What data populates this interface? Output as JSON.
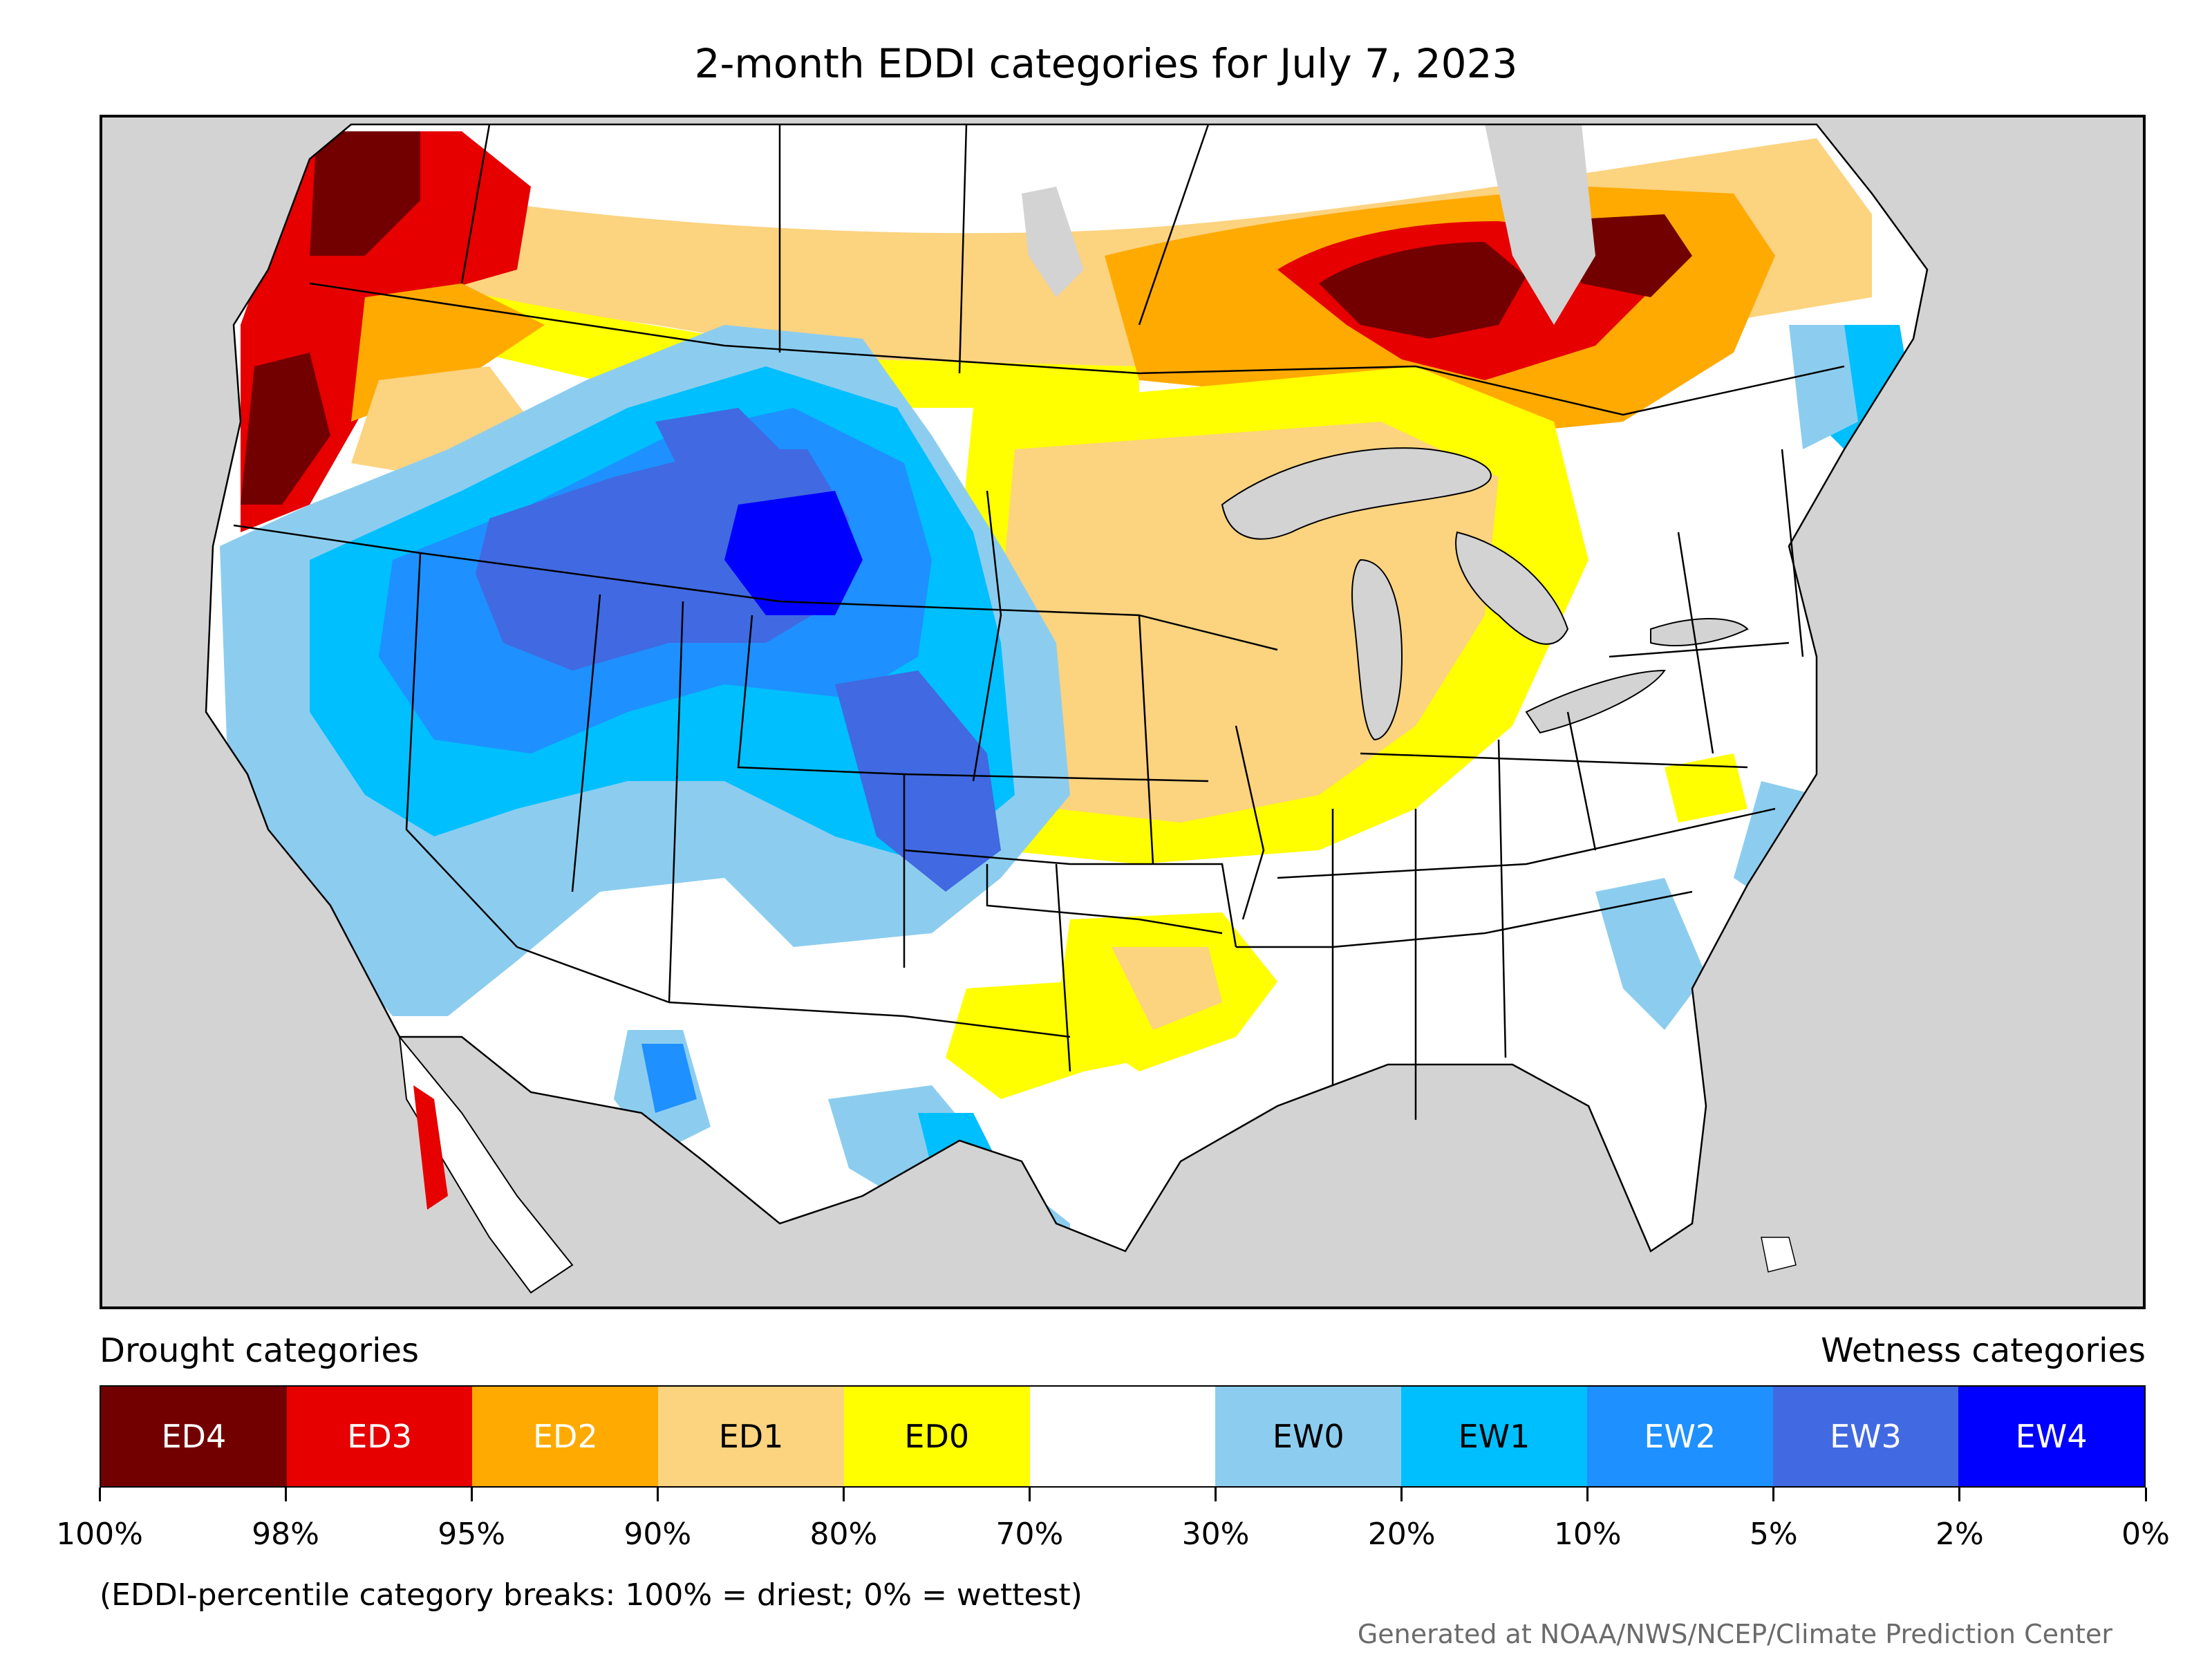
{
  "title": "2-month EDDI categories for July 7, 2023",
  "legend": {
    "left_heading": "Drought categories",
    "right_heading": "Wetness categories",
    "categories": [
      {
        "label": "ED4",
        "color": "#730000",
        "text_color": "#ffffff"
      },
      {
        "label": "ED3",
        "color": "#e60000",
        "text_color": "#ffffff"
      },
      {
        "label": "ED2",
        "color": "#ffaa00",
        "text_color": "#ffffff"
      },
      {
        "label": "ED1",
        "color": "#fcd37f",
        "text_color": "#000000"
      },
      {
        "label": "ED0",
        "color": "#ffff00",
        "text_color": "#000000"
      },
      {
        "label": "",
        "color": "#ffffff",
        "text_color": "#000000"
      },
      {
        "label": "EW0",
        "color": "#8ccdef",
        "text_color": "#000000"
      },
      {
        "label": "EW1",
        "color": "#00bfff",
        "text_color": "#000000"
      },
      {
        "label": "EW2",
        "color": "#1e90ff",
        "text_color": "#ffffff"
      },
      {
        "label": "EW3",
        "color": "#4169e1",
        "text_color": "#ffffff"
      },
      {
        "label": "EW4",
        "color": "#0000ff",
        "text_color": "#ffffff"
      }
    ],
    "ticks": [
      "100%",
      "98%",
      "95%",
      "90%",
      "80%",
      "70%",
      "30%",
      "20%",
      "10%",
      "5%",
      "2%",
      "0%"
    ]
  },
  "note": "(EDDI-percentile category breaks: 100% = driest; 0% = wettest)",
  "credit": "Generated at NOAA/NWS/NCEP/Climate Prediction Center"
}
